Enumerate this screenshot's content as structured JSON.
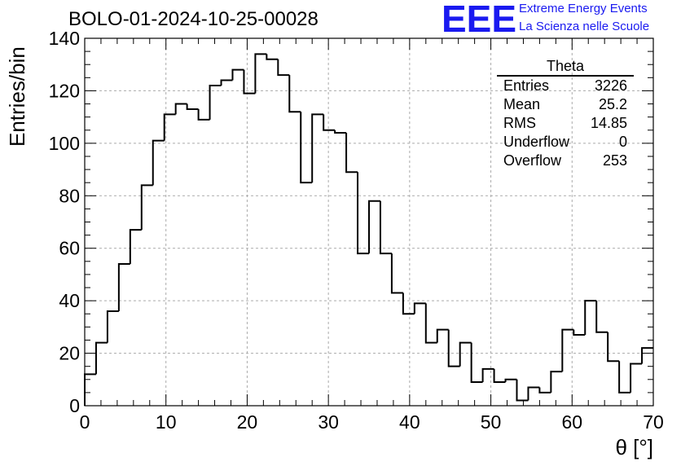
{
  "header": {
    "run_title": "BOLO-01-2024-10-25-00028",
    "logo_text": "EEE",
    "logo_line1": "Extreme Energy Events",
    "logo_line2": "La Scienza nelle Scuole",
    "logo_color": "#1a1af0"
  },
  "stats": {
    "name": "Theta",
    "rows": [
      {
        "label": "Entries",
        "value": "3226"
      },
      {
        "label": "Mean",
        "value": "25.2"
      },
      {
        "label": "RMS",
        "value": "14.85"
      },
      {
        "label": "Underflow",
        "value": "0"
      },
      {
        "label": "Overflow",
        "value": "253"
      }
    ]
  },
  "chart_data": {
    "type": "bar",
    "style": "step-histogram",
    "xlabel": "θ [°]",
    "ylabel": "Entries/bin",
    "xlim": [
      0,
      70
    ],
    "ylim": [
      0,
      140
    ],
    "xticks": [
      0,
      10,
      20,
      30,
      40,
      50,
      60,
      70
    ],
    "yticks": [
      0,
      20,
      40,
      60,
      80,
      100,
      120,
      140
    ],
    "grid": true,
    "bin_width": 1.4,
    "bin_edges_start": 0,
    "values": [
      12,
      24,
      36,
      54,
      67,
      84,
      101,
      111,
      115,
      113,
      109,
      122,
      124,
      128,
      119,
      134,
      132,
      126,
      112,
      85,
      111,
      105,
      104,
      89,
      58,
      78,
      58,
      43,
      35,
      39,
      24,
      29,
      15,
      24,
      9,
      14,
      9,
      10,
      2,
      7,
      5,
      13,
      29,
      27,
      40,
      28,
      17,
      5,
      16,
      22
    ]
  }
}
